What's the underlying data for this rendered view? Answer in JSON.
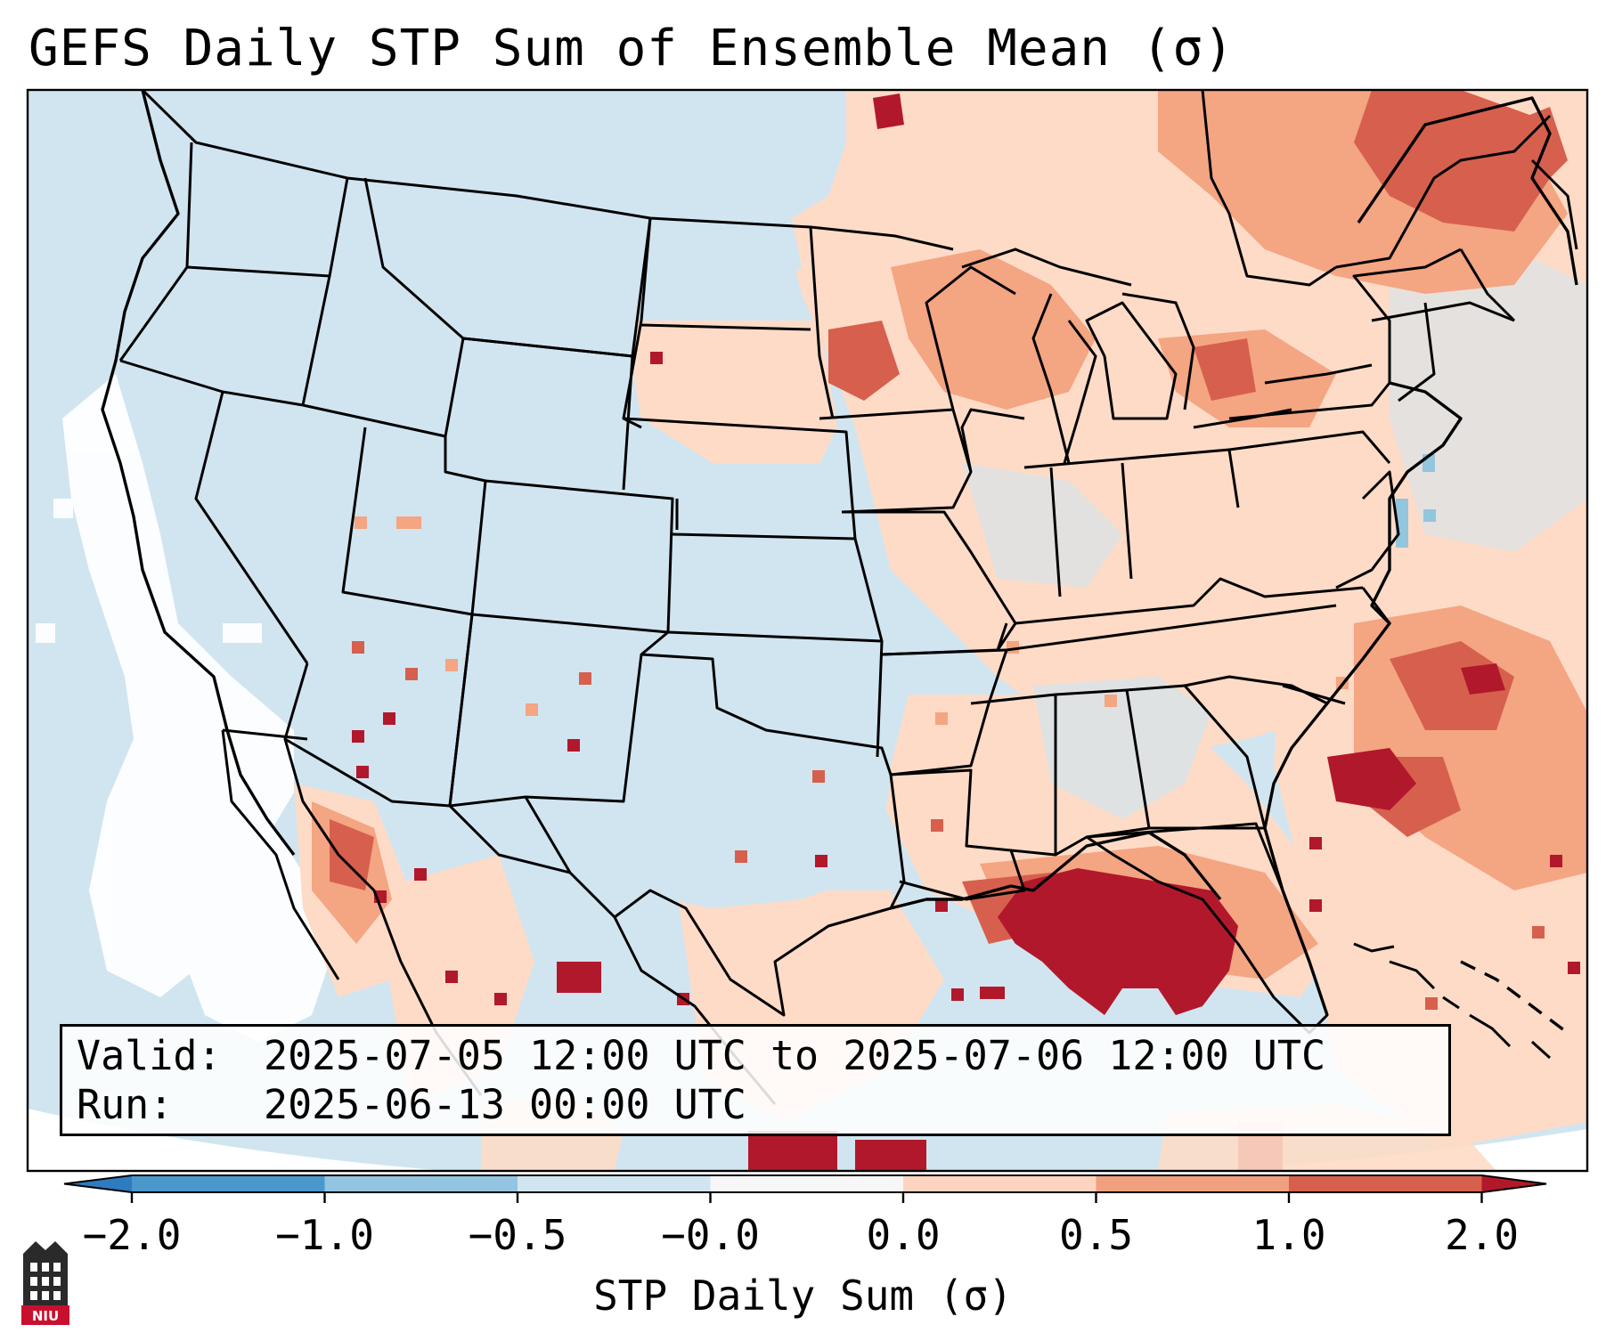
{
  "title": "GEFS Daily STP Sum of Ensemble Mean (σ)",
  "info": {
    "valid_label": "Valid:",
    "valid_value": "2025-07-05 12:00 UTC to 2025-07-06 12:00 UTC",
    "run_label": "Run:",
    "run_value": "2025-06-13 00:00 UTC"
  },
  "colorbar": {
    "label": "STP Daily Sum (σ)",
    "ticks": [
      "−2.0",
      "−1.0",
      "−0.5",
      "−0.0",
      "0.0",
      "0.5",
      "1.0",
      "2.0"
    ],
    "bin_colors": [
      "#2e7bbf",
      "#4a97cb",
      "#93c4e0",
      "#d1e5f0",
      "#f7f7f7",
      "#fdd4c0",
      "#f0a07e",
      "#d6604d",
      "#b2182b"
    ],
    "extend": "both"
  },
  "legend_colors": {
    "ocean_background": "#d1e5f0",
    "neutral": "#ffffff",
    "light_positive": "#fddbc7",
    "medium_positive": "#f4a582",
    "strong_positive": "#d6604d",
    "max_positive": "#b2182b",
    "negative": "#92c5de"
  },
  "regions": [
    {
      "name": "upper-midwest",
      "level": "medium_positive"
    },
    {
      "name": "northeast",
      "level": "medium_positive"
    },
    {
      "name": "southeast-canada",
      "level": "strong_positive"
    },
    {
      "name": "gulf-of-mexico",
      "level": "max_positive"
    },
    {
      "name": "western-atlantic",
      "level": "strong_positive"
    },
    {
      "name": "pacific-coast",
      "level": "neutral"
    },
    {
      "name": "northwest-mexico",
      "level": "strong_positive"
    },
    {
      "name": "new-jersey-coast",
      "level": "negative"
    }
  ],
  "logo": {
    "text": "NIU"
  }
}
